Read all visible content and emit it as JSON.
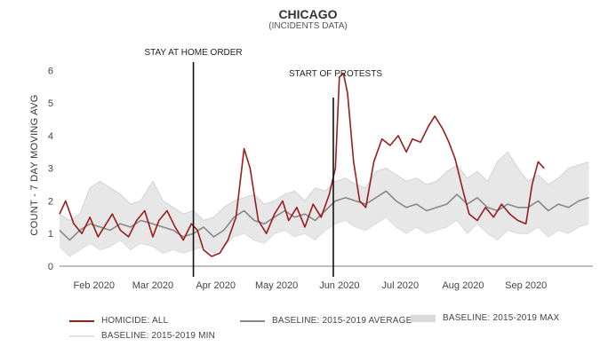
{
  "chart_data": {
    "type": "line",
    "title": "CHICAGO",
    "subtitle": "(INCIDENTS DATA)",
    "ylabel": "COUNT - 7 DAY MOVING AVG",
    "xlabel": "",
    "ylim": [
      0,
      6.2
    ],
    "yticks": [
      0,
      1,
      2,
      3,
      4,
      5,
      6
    ],
    "xlim": [
      "2020-01-15",
      "2020-10-04"
    ],
    "xticks": [
      {
        "date": "2020-02-01",
        "label": "Feb 2020"
      },
      {
        "date": "2020-03-01",
        "label": "Mar 2020"
      },
      {
        "date": "2020-04-01",
        "label": "Apr 2020"
      },
      {
        "date": "2020-05-01",
        "label": "May 2020"
      },
      {
        "date": "2020-06-01",
        "label": "Jun 2020"
      },
      {
        "date": "2020-07-01",
        "label": "Jul 2020"
      },
      {
        "date": "2020-08-01",
        "label": "Aug 2020"
      },
      {
        "date": "2020-09-01",
        "label": "Sep 2020"
      }
    ],
    "annotations": [
      {
        "date": "2020-03-21",
        "label": "STAY AT HOME ORDER"
      },
      {
        "date": "2020-05-29",
        "label": "START OF PROTESTS"
      }
    ],
    "series": [
      {
        "name": "HOMICIDE: ALL",
        "color": "#9b1c1c",
        "points": [
          [
            "2020-01-15",
            1.6
          ],
          [
            "2020-01-18",
            2.0
          ],
          [
            "2020-01-22",
            1.3
          ],
          [
            "2020-01-26",
            1.0
          ],
          [
            "2020-01-30",
            1.5
          ],
          [
            "2020-02-03",
            0.9
          ],
          [
            "2020-02-06",
            1.2
          ],
          [
            "2020-02-10",
            1.6
          ],
          [
            "2020-02-14",
            1.1
          ],
          [
            "2020-02-18",
            0.9
          ],
          [
            "2020-02-22",
            1.4
          ],
          [
            "2020-02-26",
            1.7
          ],
          [
            "2020-03-01",
            0.9
          ],
          [
            "2020-03-04",
            1.4
          ],
          [
            "2020-03-08",
            1.7
          ],
          [
            "2020-03-12",
            1.2
          ],
          [
            "2020-03-16",
            0.8
          ],
          [
            "2020-03-20",
            1.3
          ],
          [
            "2020-03-23",
            1.1
          ],
          [
            "2020-03-26",
            0.5
          ],
          [
            "2020-03-30",
            0.3
          ],
          [
            "2020-04-03",
            0.4
          ],
          [
            "2020-04-07",
            0.8
          ],
          [
            "2020-04-11",
            1.5
          ],
          [
            "2020-04-15",
            3.6
          ],
          [
            "2020-04-18",
            3.0
          ],
          [
            "2020-04-22",
            1.4
          ],
          [
            "2020-04-26",
            1.0
          ],
          [
            "2020-04-30",
            1.6
          ],
          [
            "2020-05-04",
            2.0
          ],
          [
            "2020-05-07",
            1.4
          ],
          [
            "2020-05-11",
            1.8
          ],
          [
            "2020-05-15",
            1.2
          ],
          [
            "2020-05-19",
            1.9
          ],
          [
            "2020-05-23",
            1.5
          ],
          [
            "2020-05-27",
            2.2
          ],
          [
            "2020-05-30",
            3.0
          ],
          [
            "2020-06-01",
            5.8
          ],
          [
            "2020-06-03",
            5.9
          ],
          [
            "2020-06-05",
            5.3
          ],
          [
            "2020-06-08",
            3.2
          ],
          [
            "2020-06-11",
            2.0
          ],
          [
            "2020-06-14",
            1.8
          ],
          [
            "2020-06-18",
            3.2
          ],
          [
            "2020-06-22",
            3.9
          ],
          [
            "2020-06-26",
            3.7
          ],
          [
            "2020-06-30",
            4.0
          ],
          [
            "2020-07-04",
            3.5
          ],
          [
            "2020-07-07",
            3.9
          ],
          [
            "2020-07-11",
            3.8
          ],
          [
            "2020-07-15",
            4.3
          ],
          [
            "2020-07-18",
            4.6
          ],
          [
            "2020-07-22",
            4.2
          ],
          [
            "2020-07-25",
            3.8
          ],
          [
            "2020-07-28",
            3.3
          ],
          [
            "2020-08-01",
            2.3
          ],
          [
            "2020-08-04",
            1.6
          ],
          [
            "2020-08-08",
            1.4
          ],
          [
            "2020-08-12",
            1.8
          ],
          [
            "2020-08-16",
            1.5
          ],
          [
            "2020-08-20",
            1.9
          ],
          [
            "2020-08-24",
            1.6
          ],
          [
            "2020-08-28",
            1.4
          ],
          [
            "2020-09-01",
            1.3
          ],
          [
            "2020-09-04",
            2.5
          ],
          [
            "2020-09-07",
            3.2
          ],
          [
            "2020-09-10",
            3.0
          ]
        ]
      },
      {
        "name": "BASELINE: 2015-2019 AVERAGE",
        "color": "#888888",
        "points": [
          [
            "2020-01-15",
            1.1
          ],
          [
            "2020-01-20",
            0.8
          ],
          [
            "2020-01-25",
            1.1
          ],
          [
            "2020-01-30",
            1.3
          ],
          [
            "2020-02-04",
            1.2
          ],
          [
            "2020-02-09",
            1.1
          ],
          [
            "2020-02-14",
            1.3
          ],
          [
            "2020-02-19",
            1.2
          ],
          [
            "2020-02-24",
            1.4
          ],
          [
            "2020-03-01",
            1.3
          ],
          [
            "2020-03-06",
            1.2
          ],
          [
            "2020-03-11",
            1.1
          ],
          [
            "2020-03-16",
            0.9
          ],
          [
            "2020-03-21",
            1.0
          ],
          [
            "2020-03-26",
            1.2
          ],
          [
            "2020-03-31",
            0.9
          ],
          [
            "2020-04-05",
            1.1
          ],
          [
            "2020-04-10",
            1.5
          ],
          [
            "2020-04-15",
            1.7
          ],
          [
            "2020-04-20",
            1.4
          ],
          [
            "2020-04-25",
            1.3
          ],
          [
            "2020-04-30",
            1.5
          ],
          [
            "2020-05-05",
            1.7
          ],
          [
            "2020-05-10",
            1.5
          ],
          [
            "2020-05-15",
            1.6
          ],
          [
            "2020-05-20",
            1.4
          ],
          [
            "2020-05-25",
            1.7
          ],
          [
            "2020-05-30",
            2.0
          ],
          [
            "2020-06-04",
            2.1
          ],
          [
            "2020-06-09",
            2.0
          ],
          [
            "2020-06-14",
            1.9
          ],
          [
            "2020-06-19",
            2.1
          ],
          [
            "2020-06-24",
            2.3
          ],
          [
            "2020-06-29",
            2.0
          ],
          [
            "2020-07-04",
            1.8
          ],
          [
            "2020-07-09",
            1.9
          ],
          [
            "2020-07-14",
            1.7
          ],
          [
            "2020-07-19",
            1.8
          ],
          [
            "2020-07-24",
            1.9
          ],
          [
            "2020-07-29",
            2.2
          ],
          [
            "2020-08-03",
            1.9
          ],
          [
            "2020-08-08",
            2.1
          ],
          [
            "2020-08-13",
            1.8
          ],
          [
            "2020-08-18",
            1.7
          ],
          [
            "2020-08-23",
            1.9
          ],
          [
            "2020-08-28",
            1.8
          ],
          [
            "2020-09-02",
            1.8
          ],
          [
            "2020-09-07",
            2.0
          ],
          [
            "2020-09-12",
            1.7
          ],
          [
            "2020-09-17",
            1.9
          ],
          [
            "2020-09-22",
            1.8
          ],
          [
            "2020-09-27",
            2.0
          ],
          [
            "2020-10-02",
            2.1
          ]
        ]
      },
      {
        "name": "BASELINE: 2015-2019 MAX",
        "color": "#cccccc",
        "points": [
          [
            "2020-01-15",
            1.6
          ],
          [
            "2020-01-20",
            1.4
          ],
          [
            "2020-01-25",
            1.6
          ],
          [
            "2020-01-30",
            2.4
          ],
          [
            "2020-02-04",
            2.6
          ],
          [
            "2020-02-09",
            2.4
          ],
          [
            "2020-02-14",
            2.2
          ],
          [
            "2020-02-19",
            1.9
          ],
          [
            "2020-02-24",
            2.0
          ],
          [
            "2020-03-01",
            2.6
          ],
          [
            "2020-03-06",
            2.0
          ],
          [
            "2020-03-11",
            1.8
          ],
          [
            "2020-03-16",
            1.6
          ],
          [
            "2020-03-21",
            1.7
          ],
          [
            "2020-03-26",
            1.4
          ],
          [
            "2020-03-31",
            1.5
          ],
          [
            "2020-04-05",
            1.8
          ],
          [
            "2020-04-10",
            2.0
          ],
          [
            "2020-04-15",
            2.1
          ],
          [
            "2020-04-20",
            2.2
          ],
          [
            "2020-04-25",
            1.9
          ],
          [
            "2020-04-30",
            2.0
          ],
          [
            "2020-05-05",
            2.2
          ],
          [
            "2020-05-10",
            2.3
          ],
          [
            "2020-05-15",
            2.0
          ],
          [
            "2020-05-20",
            2.4
          ],
          [
            "2020-05-25",
            2.3
          ],
          [
            "2020-05-30",
            2.6
          ],
          [
            "2020-06-04",
            2.7
          ],
          [
            "2020-06-09",
            2.5
          ],
          [
            "2020-06-14",
            2.4
          ],
          [
            "2020-06-19",
            2.9
          ],
          [
            "2020-06-24",
            3.0
          ],
          [
            "2020-06-29",
            2.8
          ],
          [
            "2020-07-04",
            2.6
          ],
          [
            "2020-07-09",
            2.7
          ],
          [
            "2020-07-14",
            2.5
          ],
          [
            "2020-07-19",
            2.6
          ],
          [
            "2020-07-24",
            2.9
          ],
          [
            "2020-07-29",
            3.1
          ],
          [
            "2020-08-03",
            2.7
          ],
          [
            "2020-08-08",
            2.9
          ],
          [
            "2020-08-13",
            2.6
          ],
          [
            "2020-08-18",
            3.2
          ],
          [
            "2020-08-23",
            3.5
          ],
          [
            "2020-08-28",
            3.0
          ],
          [
            "2020-09-02",
            2.6
          ],
          [
            "2020-09-07",
            2.8
          ],
          [
            "2020-09-12",
            2.5
          ],
          [
            "2020-09-17",
            2.7
          ],
          [
            "2020-09-22",
            3.0
          ],
          [
            "2020-09-27",
            3.1
          ],
          [
            "2020-10-02",
            3.2
          ]
        ]
      },
      {
        "name": "BASELINE: 2015-2019 MIN",
        "color": "#e2e2e2",
        "points": [
          [
            "2020-01-15",
            0.6
          ],
          [
            "2020-01-20",
            0.3
          ],
          [
            "2020-01-25",
            0.5
          ],
          [
            "2020-01-30",
            0.7
          ],
          [
            "2020-02-04",
            0.5
          ],
          [
            "2020-02-09",
            0.6
          ],
          [
            "2020-02-14",
            0.8
          ],
          [
            "2020-02-19",
            0.5
          ],
          [
            "2020-02-24",
            0.7
          ],
          [
            "2020-03-01",
            0.6
          ],
          [
            "2020-03-06",
            0.4
          ],
          [
            "2020-03-11",
            0.5
          ],
          [
            "2020-03-16",
            0.4
          ],
          [
            "2020-03-21",
            0.5
          ],
          [
            "2020-03-26",
            0.6
          ],
          [
            "2020-03-31",
            0.4
          ],
          [
            "2020-04-05",
            0.6
          ],
          [
            "2020-04-10",
            0.9
          ],
          [
            "2020-04-15",
            1.0
          ],
          [
            "2020-04-20",
            0.8
          ],
          [
            "2020-04-25",
            0.7
          ],
          [
            "2020-04-30",
            1.0
          ],
          [
            "2020-05-05",
            1.1
          ],
          [
            "2020-05-10",
            0.9
          ],
          [
            "2020-05-15",
            1.0
          ],
          [
            "2020-05-20",
            0.8
          ],
          [
            "2020-05-25",
            1.1
          ],
          [
            "2020-05-30",
            1.3
          ],
          [
            "2020-06-04",
            1.4
          ],
          [
            "2020-06-09",
            1.2
          ],
          [
            "2020-06-14",
            1.1
          ],
          [
            "2020-06-19",
            1.3
          ],
          [
            "2020-06-24",
            1.5
          ],
          [
            "2020-06-29",
            1.2
          ],
          [
            "2020-07-04",
            1.0
          ],
          [
            "2020-07-09",
            1.2
          ],
          [
            "2020-07-14",
            1.0
          ],
          [
            "2020-07-19",
            1.1
          ],
          [
            "2020-07-24",
            1.2
          ],
          [
            "2020-07-29",
            1.4
          ],
          [
            "2020-08-03",
            1.0
          ],
          [
            "2020-08-08",
            1.3
          ],
          [
            "2020-08-13",
            1.0
          ],
          [
            "2020-08-18",
            0.8
          ],
          [
            "2020-08-23",
            1.1
          ],
          [
            "2020-08-28",
            1.0
          ],
          [
            "2020-09-02",
            1.0
          ],
          [
            "2020-09-07",
            1.2
          ],
          [
            "2020-09-12",
            0.9
          ],
          [
            "2020-09-17",
            1.1
          ],
          [
            "2020-09-22",
            1.0
          ],
          [
            "2020-09-27",
            1.2
          ],
          [
            "2020-10-02",
            1.3
          ]
        ]
      }
    ],
    "legend_position": "bottom",
    "grid": false
  }
}
